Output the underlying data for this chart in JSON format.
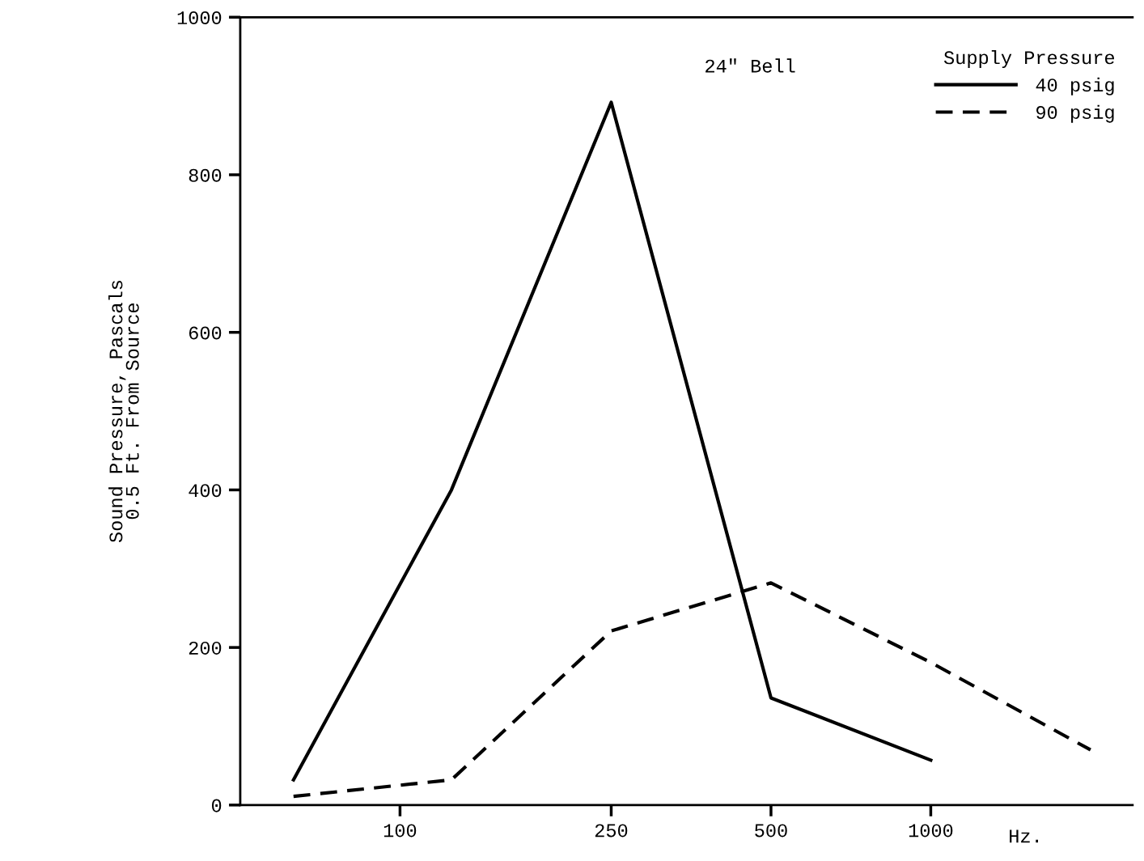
{
  "chart_data": {
    "type": "line",
    "log": "x",
    "ylabel": "Sound Pressure, Pascals\n0.5 Ft. From Source",
    "xlabel": "Hz.",
    "legend_title": "Supply Pressure",
    "annotations": [
      "24\" Bell"
    ],
    "xlim": [
      50,
      2400
    ],
    "xticks": [
      100,
      250,
      500,
      1000
    ],
    "ylim": [
      0,
      1000
    ],
    "yticks": [
      0,
      200,
      400,
      600,
      800,
      1000
    ],
    "grid": false,
    "legend": "top right",
    "marker": "none",
    "series": [
      {
        "name": "40 psig",
        "color": "#000000",
        "line_style": "solid",
        "x": [
          63,
          125,
          250,
          500,
          1000
        ],
        "values": [
          32,
          400,
          892,
          136,
          57
        ]
      },
      {
        "name": "90 psig",
        "color": "#000000",
        "line_style": "dashed",
        "x": [
          63,
          125,
          250,
          500,
          1000,
          2000
        ],
        "values": [
          11,
          32,
          221,
          282,
          181,
          70
        ]
      }
    ]
  }
}
